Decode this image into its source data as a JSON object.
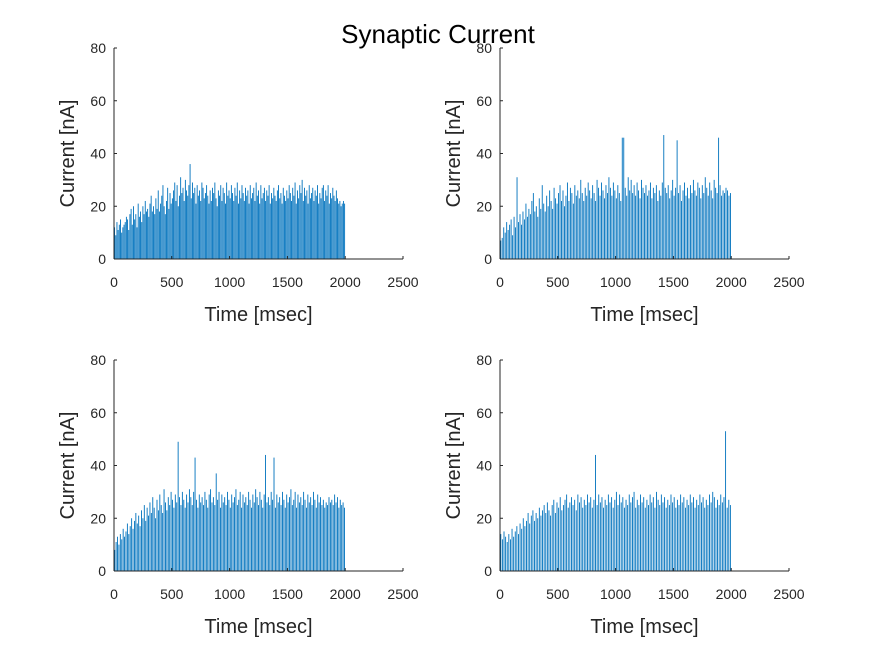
{
  "figure_title": "Synaptic Current",
  "chart_data": [
    {
      "type": "bar",
      "panel": "top-left",
      "xlabel": "Time [msec]",
      "ylabel": "Current [nA]",
      "xlim": [
        0,
        2500
      ],
      "ylim": [
        0,
        80
      ],
      "xticks": [
        0,
        500,
        1000,
        1500,
        2000,
        2500
      ],
      "yticks": [
        0,
        20,
        40,
        60,
        80
      ],
      "x_range": [
        0,
        2000
      ],
      "peak": 36,
      "values": [
        12,
        9,
        14,
        11,
        13,
        15,
        10,
        12,
        13,
        14,
        16,
        15,
        11,
        17,
        19,
        13,
        20,
        15,
        17,
        12,
        21,
        16,
        18,
        14,
        20,
        17,
        22,
        18,
        19,
        16,
        21,
        24,
        18,
        20,
        17,
        23,
        19,
        26,
        18,
        21,
        24,
        28,
        20,
        17,
        22,
        27,
        19,
        25,
        21,
        23,
        26,
        29,
        22,
        28,
        20,
        24,
        31,
        25,
        27,
        22,
        30,
        26,
        24,
        28,
        36,
        23,
        29,
        25,
        27,
        21,
        28,
        24,
        26,
        22,
        29,
        27,
        23,
        25,
        28,
        24,
        21,
        26,
        22,
        27,
        25,
        29,
        23,
        20,
        26,
        24,
        28,
        22,
        27,
        25,
        21,
        29,
        24,
        26,
        23,
        28,
        25,
        22,
        27,
        24,
        29,
        21,
        26,
        23,
        28,
        25,
        22,
        27,
        24,
        26,
        21,
        28,
        23,
        25,
        27,
        22,
        29,
        24,
        26,
        21,
        28,
        23,
        25,
        27,
        22,
        26,
        24,
        28,
        21,
        25,
        23,
        27,
        24,
        22,
        26,
        28,
        23,
        25,
        21,
        27,
        24,
        22,
        26,
        23,
        28,
        25,
        22,
        27,
        24,
        29,
        21,
        26,
        23,
        28,
        25,
        30,
        22,
        27,
        24,
        26,
        21,
        28,
        23,
        25,
        27,
        22,
        26,
        24,
        28,
        21,
        25,
        23,
        27,
        28,
        22,
        26,
        24,
        28,
        21,
        25,
        23,
        27,
        24,
        22,
        26,
        23,
        21,
        22,
        20,
        21,
        22,
        21
      ]
    },
    {
      "type": "bar",
      "panel": "top-right",
      "xlabel": "Time [msec]",
      "ylabel": "Current [nA]",
      "xlim": [
        0,
        2500
      ],
      "ylim": [
        0,
        80
      ],
      "xticks": [
        0,
        500,
        1000,
        1500,
        2000,
        2500
      ],
      "yticks": [
        0,
        20,
        40,
        60,
        80
      ],
      "x_range": [
        0,
        2000
      ],
      "peak": 47,
      "values": [
        7,
        8,
        12,
        10,
        14,
        11,
        13,
        15,
        9,
        16,
        12,
        31,
        14,
        17,
        13,
        18,
        15,
        21,
        16,
        19,
        17,
        22,
        25,
        18,
        20,
        16,
        23,
        19,
        28,
        21,
        18,
        24,
        20,
        26,
        22,
        19,
        27,
        23,
        21,
        25,
        28,
        22,
        26,
        20,
        24,
        29,
        22,
        27,
        25,
        21,
        28,
        24,
        26,
        23,
        30,
        25,
        22,
        27,
        24,
        29,
        26,
        23,
        28,
        25,
        22,
        30,
        27,
        24,
        29,
        26,
        23,
        28,
        25,
        31,
        27,
        24,
        29,
        26,
        23,
        28,
        25,
        22,
        46,
        46,
        27,
        24,
        31,
        26,
        30,
        25,
        28,
        24,
        29,
        26,
        23,
        30,
        27,
        25,
        28,
        24,
        26,
        29,
        23,
        27,
        25,
        28,
        22,
        26,
        24,
        29,
        47,
        27,
        25,
        28,
        23,
        26,
        30,
        24,
        27,
        45,
        25,
        28,
        22,
        26,
        29,
        24,
        27,
        23,
        28,
        25,
        30,
        26,
        24,
        29,
        27,
        23,
        28,
        25,
        31,
        27,
        24,
        29,
        26,
        23,
        30,
        27,
        25,
        46,
        28,
        24,
        26,
        25,
        27,
        26,
        24,
        25
      ]
    },
    {
      "type": "bar",
      "panel": "bottom-left",
      "xlabel": "Time [msec]",
      "ylabel": "Current [nA]",
      "xlim": [
        0,
        2500
      ],
      "ylim": [
        0,
        80
      ],
      "xticks": [
        0,
        500,
        1000,
        1500,
        2000,
        2500
      ],
      "yticks": [
        0,
        20,
        40,
        60,
        80
      ],
      "x_range": [
        0,
        2000
      ],
      "peak": 49,
      "values": [
        8,
        11,
        13,
        10,
        14,
        12,
        16,
        13,
        15,
        18,
        14,
        17,
        20,
        16,
        19,
        22,
        18,
        21,
        17,
        23,
        20,
        25,
        19,
        24,
        21,
        26,
        22,
        28,
        24,
        20,
        27,
        23,
        29,
        25,
        22,
        31,
        26,
        23,
        28,
        25,
        30,
        27,
        24,
        29,
        26,
        49,
        28,
        25,
        30,
        27,
        24,
        29,
        26,
        31,
        28,
        25,
        30,
        43,
        27,
        24,
        29,
        26,
        28,
        25,
        30,
        27,
        24,
        29,
        31,
        26,
        28,
        25,
        37,
        27,
        30,
        24,
        29,
        26,
        28,
        25,
        30,
        27,
        24,
        29,
        26,
        28,
        31,
        25,
        27,
        30,
        24,
        29,
        26,
        28,
        25,
        30,
        27,
        24,
        29,
        26,
        31,
        28,
        25,
        30,
        27,
        24,
        29,
        44,
        26,
        28,
        25,
        30,
        27,
        43,
        24,
        29,
        26,
        28,
        25,
        30,
        27,
        24,
        29,
        26,
        28,
        31,
        25,
        27,
        30,
        24,
        29,
        26,
        28,
        25,
        30,
        27,
        24,
        29,
        26,
        28,
        25,
        30,
        27,
        24,
        29,
        26,
        28,
        25,
        27,
        24,
        26,
        25,
        28,
        26,
        27,
        25,
        29,
        26,
        28,
        24,
        27,
        25,
        26,
        24
      ]
    },
    {
      "type": "bar",
      "panel": "bottom-right",
      "xlabel": "Time [msec]",
      "ylabel": "Current [nA]",
      "xlim": [
        0,
        2500
      ],
      "ylim": [
        0,
        80
      ],
      "xticks": [
        0,
        500,
        1000,
        1500,
        2000,
        2500
      ],
      "yticks": [
        0,
        20,
        40,
        60,
        80
      ],
      "x_range": [
        0,
        2000
      ],
      "peak": 53,
      "values": [
        14,
        12,
        15,
        13,
        11,
        14,
        12,
        16,
        13,
        15,
        17,
        14,
        18,
        16,
        20,
        17,
        19,
        22,
        18,
        21,
        23,
        19,
        22,
        20,
        24,
        21,
        23,
        25,
        22,
        26,
        23,
        21,
        25,
        27,
        22,
        26,
        24,
        28,
        23,
        25,
        27,
        29,
        24,
        26,
        28,
        25,
        27,
        23,
        29,
        26,
        28,
        24,
        27,
        25,
        29,
        26,
        28,
        24,
        27,
        44,
        25,
        29,
        26,
        28,
        24,
        27,
        25,
        29,
        26,
        28,
        24,
        27,
        30,
        25,
        29,
        26,
        28,
        24,
        27,
        25,
        29,
        26,
        28,
        30,
        24,
        27,
        25,
        29,
        26,
        28,
        24,
        27,
        25,
        29,
        26,
        28,
        24,
        30,
        27,
        25,
        29,
        26,
        28,
        24,
        27,
        25,
        29,
        26,
        28,
        24,
        27,
        25,
        29,
        26,
        28,
        24,
        27,
        25,
        29,
        26,
        28,
        24,
        27,
        25,
        29,
        26,
        28,
        24,
        27,
        25,
        29,
        26,
        30,
        28,
        24,
        27,
        25,
        29,
        26,
        28,
        53,
        24,
        27,
        25
      ]
    }
  ],
  "colors": {
    "bars": "#0072bd",
    "axes": "#262626"
  }
}
